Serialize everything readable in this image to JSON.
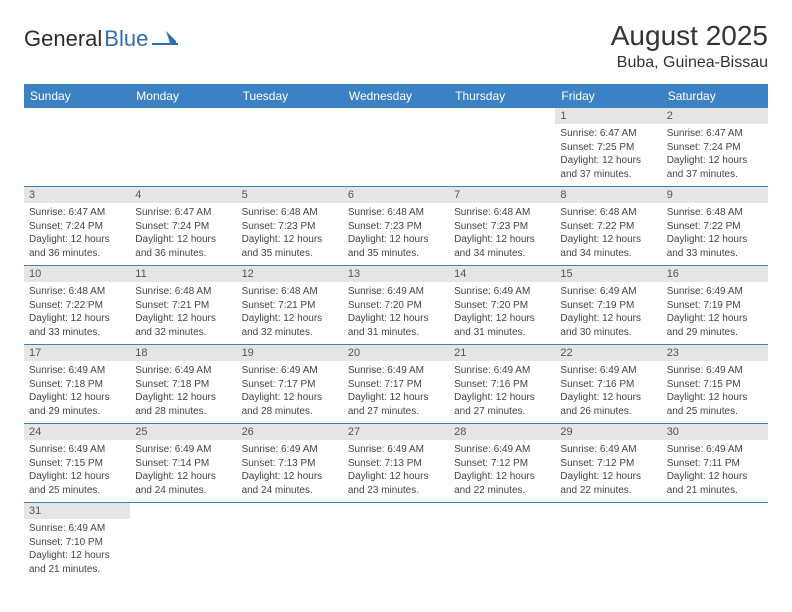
{
  "header": {
    "logo_text1": "General",
    "logo_text2": "Blue",
    "month_title": "August 2025",
    "location": "Buba, Guinea-Bissau"
  },
  "colors": {
    "header_bg": "#3b81c3",
    "header_text": "#ffffff",
    "daynum_bg": "#e5e5e5",
    "cell_border": "#3b81c3",
    "logo_blue": "#2f6fb0"
  },
  "weekdays": [
    "Sunday",
    "Monday",
    "Tuesday",
    "Wednesday",
    "Thursday",
    "Friday",
    "Saturday"
  ],
  "weeks": [
    [
      null,
      null,
      null,
      null,
      null,
      {
        "n": "1",
        "sr": "6:47 AM",
        "ss": "7:25 PM",
        "dl": "12 hours and 37 minutes."
      },
      {
        "n": "2",
        "sr": "6:47 AM",
        "ss": "7:24 PM",
        "dl": "12 hours and 37 minutes."
      }
    ],
    [
      {
        "n": "3",
        "sr": "6:47 AM",
        "ss": "7:24 PM",
        "dl": "12 hours and 36 minutes."
      },
      {
        "n": "4",
        "sr": "6:47 AM",
        "ss": "7:24 PM",
        "dl": "12 hours and 36 minutes."
      },
      {
        "n": "5",
        "sr": "6:48 AM",
        "ss": "7:23 PM",
        "dl": "12 hours and 35 minutes."
      },
      {
        "n": "6",
        "sr": "6:48 AM",
        "ss": "7:23 PM",
        "dl": "12 hours and 35 minutes."
      },
      {
        "n": "7",
        "sr": "6:48 AM",
        "ss": "7:23 PM",
        "dl": "12 hours and 34 minutes."
      },
      {
        "n": "8",
        "sr": "6:48 AM",
        "ss": "7:22 PM",
        "dl": "12 hours and 34 minutes."
      },
      {
        "n": "9",
        "sr": "6:48 AM",
        "ss": "7:22 PM",
        "dl": "12 hours and 33 minutes."
      }
    ],
    [
      {
        "n": "10",
        "sr": "6:48 AM",
        "ss": "7:22 PM",
        "dl": "12 hours and 33 minutes."
      },
      {
        "n": "11",
        "sr": "6:48 AM",
        "ss": "7:21 PM",
        "dl": "12 hours and 32 minutes."
      },
      {
        "n": "12",
        "sr": "6:48 AM",
        "ss": "7:21 PM",
        "dl": "12 hours and 32 minutes."
      },
      {
        "n": "13",
        "sr": "6:49 AM",
        "ss": "7:20 PM",
        "dl": "12 hours and 31 minutes."
      },
      {
        "n": "14",
        "sr": "6:49 AM",
        "ss": "7:20 PM",
        "dl": "12 hours and 31 minutes."
      },
      {
        "n": "15",
        "sr": "6:49 AM",
        "ss": "7:19 PM",
        "dl": "12 hours and 30 minutes."
      },
      {
        "n": "16",
        "sr": "6:49 AM",
        "ss": "7:19 PM",
        "dl": "12 hours and 29 minutes."
      }
    ],
    [
      {
        "n": "17",
        "sr": "6:49 AM",
        "ss": "7:18 PM",
        "dl": "12 hours and 29 minutes."
      },
      {
        "n": "18",
        "sr": "6:49 AM",
        "ss": "7:18 PM",
        "dl": "12 hours and 28 minutes."
      },
      {
        "n": "19",
        "sr": "6:49 AM",
        "ss": "7:17 PM",
        "dl": "12 hours and 28 minutes."
      },
      {
        "n": "20",
        "sr": "6:49 AM",
        "ss": "7:17 PM",
        "dl": "12 hours and 27 minutes."
      },
      {
        "n": "21",
        "sr": "6:49 AM",
        "ss": "7:16 PM",
        "dl": "12 hours and 27 minutes."
      },
      {
        "n": "22",
        "sr": "6:49 AM",
        "ss": "7:16 PM",
        "dl": "12 hours and 26 minutes."
      },
      {
        "n": "23",
        "sr": "6:49 AM",
        "ss": "7:15 PM",
        "dl": "12 hours and 25 minutes."
      }
    ],
    [
      {
        "n": "24",
        "sr": "6:49 AM",
        "ss": "7:15 PM",
        "dl": "12 hours and 25 minutes."
      },
      {
        "n": "25",
        "sr": "6:49 AM",
        "ss": "7:14 PM",
        "dl": "12 hours and 24 minutes."
      },
      {
        "n": "26",
        "sr": "6:49 AM",
        "ss": "7:13 PM",
        "dl": "12 hours and 24 minutes."
      },
      {
        "n": "27",
        "sr": "6:49 AM",
        "ss": "7:13 PM",
        "dl": "12 hours and 23 minutes."
      },
      {
        "n": "28",
        "sr": "6:49 AM",
        "ss": "7:12 PM",
        "dl": "12 hours and 22 minutes."
      },
      {
        "n": "29",
        "sr": "6:49 AM",
        "ss": "7:12 PM",
        "dl": "12 hours and 22 minutes."
      },
      {
        "n": "30",
        "sr": "6:49 AM",
        "ss": "7:11 PM",
        "dl": "12 hours and 21 minutes."
      }
    ],
    [
      {
        "n": "31",
        "sr": "6:49 AM",
        "ss": "7:10 PM",
        "dl": "12 hours and 21 minutes."
      },
      null,
      null,
      null,
      null,
      null,
      null
    ]
  ],
  "labels": {
    "sunrise": "Sunrise:",
    "sunset": "Sunset:",
    "daylight": "Daylight:"
  }
}
